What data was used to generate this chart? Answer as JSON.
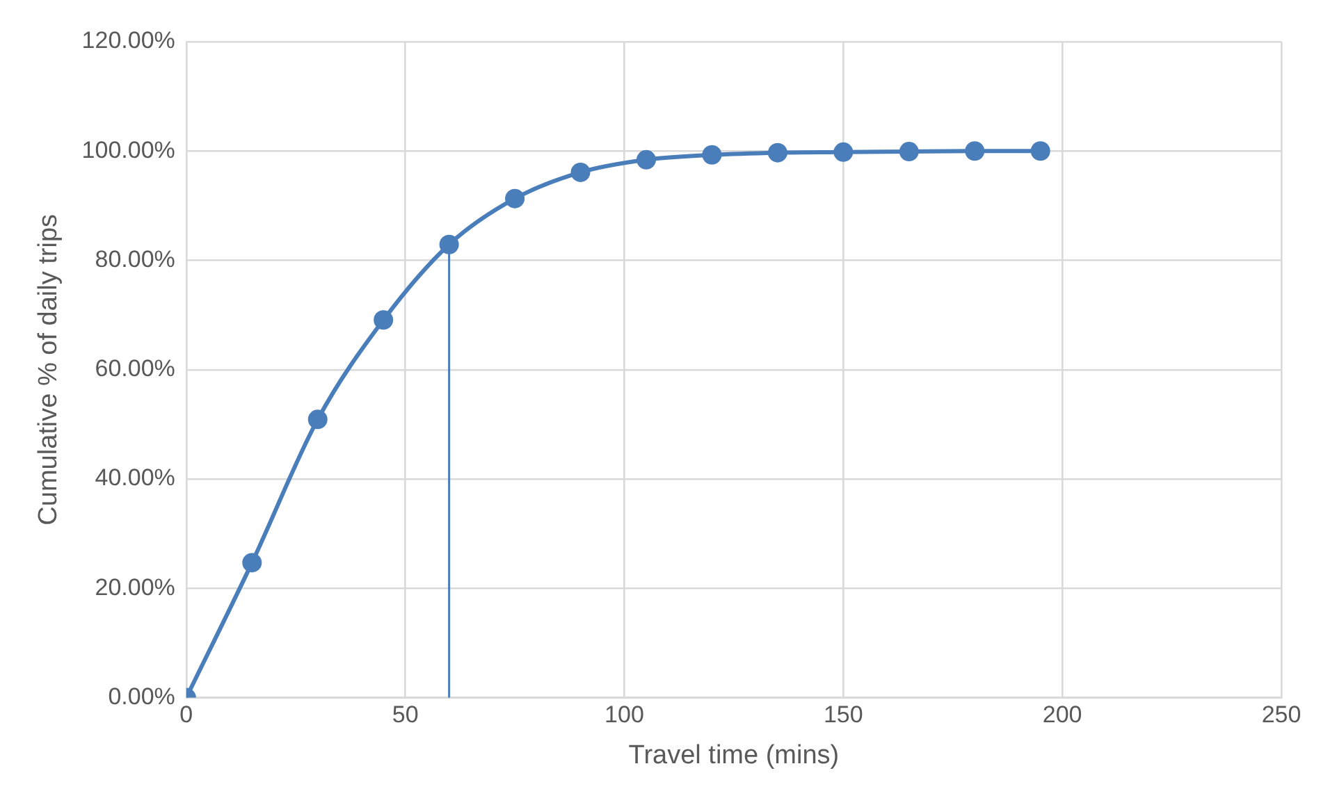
{
  "chart_data": {
    "type": "line",
    "xlabel": "Travel time (mins)",
    "ylabel": "Cumulative % of daily trips",
    "x": [
      0,
      15,
      30,
      45,
      60,
      75,
      90,
      105,
      120,
      135,
      150,
      165,
      180,
      195
    ],
    "series": [
      {
        "color": "#4a7ebb",
        "values": [
          0,
          24.7,
          50.9,
          69.1,
          82.9,
          91.3,
          96.1,
          98.4,
          99.3,
          99.7,
          99.8,
          99.9,
          100,
          100
        ]
      },
      {
        "type": "line",
        "color": "#4a7ebb",
        "marker": "none",
        "x": [
          60,
          60
        ],
        "values": [
          0,
          82.9
        ]
      }
    ],
    "xlim": [
      0,
      250
    ],
    "xticks": [
      0,
      50,
      100,
      150,
      200,
      250
    ],
    "ylim": [
      0,
      120
    ],
    "yticks": [
      {
        "value": 0,
        "label": "0.00%"
      },
      {
        "value": 20,
        "label": "20.00%"
      },
      {
        "value": 40,
        "label": "40.00%"
      },
      {
        "value": 60,
        "label": "60.00%"
      },
      {
        "value": 80,
        "label": "80.00%"
      },
      {
        "value": 100,
        "label": "100.00%"
      },
      {
        "value": 120,
        "label": "120.00%"
      }
    ],
    "grid": true,
    "legend": false,
    "marker": "circle",
    "line_style": "solid"
  }
}
